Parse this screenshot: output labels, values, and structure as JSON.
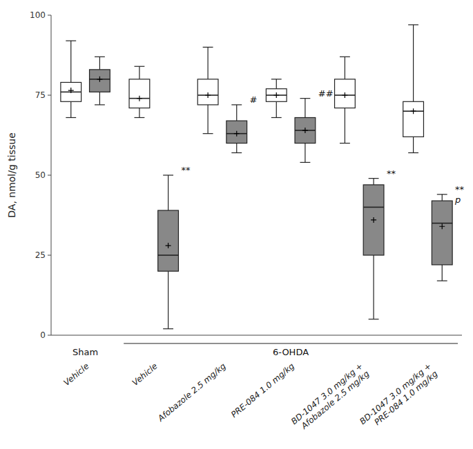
{
  "chart_data": {
    "type": "box",
    "ylabel": "DA, nmol/g tissue",
    "ylim": [
      0,
      100
    ],
    "yticks": [
      0,
      25,
      50,
      75,
      100
    ],
    "grid": false,
    "categories": [
      "Vehicle",
      "Vehicle",
      "Afobazole 2.5 mg/kg",
      "PRE-084 1.0 mg/kg",
      "BD-1047 3.0 mg/kg +\nAfobazole 2.5 mg/kg",
      "BD-1047 3.0 mg/kg +\nPRE-084 1.0 mg/kg"
    ],
    "category_groups": [
      "Sham",
      "6-OHDA",
      "6-OHDA",
      "6-OHDA",
      "6-OHDA",
      "6-OHDA"
    ],
    "series": [
      {
        "color": "white",
        "whislo": [
          68,
          68,
          63,
          68,
          60,
          57
        ],
        "q1": [
          73,
          71,
          72,
          73,
          71,
          62
        ],
        "med": [
          76,
          74,
          75,
          75,
          75,
          70
        ],
        "q3": [
          79,
          80,
          80,
          77,
          80,
          73
        ],
        "whishi": [
          92,
          84,
          90,
          80,
          87,
          97
        ],
        "mean": [
          76.5,
          74,
          75,
          75,
          75,
          70
        ]
      },
      {
        "color": "#888888",
        "whislo": [
          72,
          2,
          57,
          54,
          5,
          17
        ],
        "q1": [
          76,
          20,
          60,
          60,
          25,
          22
        ],
        "med": [
          80,
          25,
          63,
          64,
          40,
          35
        ],
        "q3": [
          83,
          39,
          67,
          68,
          47,
          42
        ],
        "whishi": [
          87,
          50,
          72,
          74,
          49,
          44
        ],
        "mean": [
          80,
          28,
          63,
          64,
          36,
          34
        ]
      }
    ],
    "annotations": [
      {
        "text": "**",
        "series": 1,
        "category": 1
      },
      {
        "text": "#",
        "series": 1,
        "category": 2
      },
      {
        "text": "##",
        "series": 1,
        "category": 3
      },
      {
        "text": "**",
        "series": 1,
        "category": 4
      },
      {
        "text": "**",
        "series": 1,
        "category": 5
      },
      {
        "text": "p",
        "series": 1,
        "category": 5
      }
    ]
  }
}
